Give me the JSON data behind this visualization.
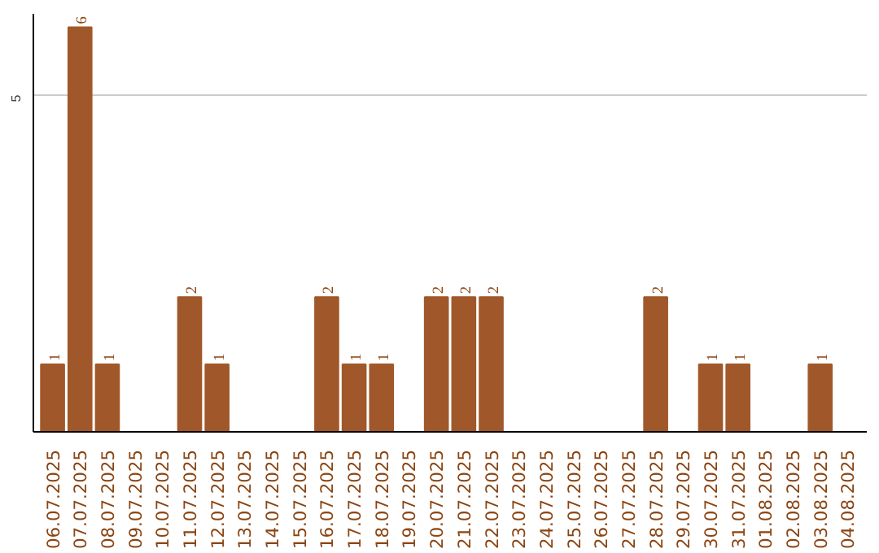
{
  "chart_data": {
    "type": "bar",
    "categories": [
      "06.07.2025",
      "07.07.2025",
      "08.07.2025",
      "09.07.2025",
      "10.07.2025",
      "11.07.2025",
      "12.07.2025",
      "13.07.2025",
      "14.07.2025",
      "15.07.2025",
      "16.07.2025",
      "17.07.2025",
      "18.07.2025",
      "19.07.2025",
      "20.07.2025",
      "21.07.2025",
      "22.07.2025",
      "23.07.2025",
      "24.07.2025",
      "25.07.2025",
      "26.07.2025",
      "27.07.2025",
      "28.07.2025",
      "29.07.2025",
      "30.07.2025",
      "31.07.2025",
      "01.08.2025",
      "02.08.2025",
      "03.08.2025",
      "04.08.2025"
    ],
    "values": [
      1,
      6,
      1,
      0,
      0,
      2,
      1,
      0,
      0,
      0,
      2,
      1,
      1,
      0,
      2,
      2,
      2,
      0,
      0,
      0,
      0,
      0,
      2,
      0,
      1,
      1,
      0,
      0,
      1,
      0
    ],
    "value_labels": [
      "1",
      "6",
      "1",
      null,
      null,
      "2",
      "1",
      null,
      null,
      null,
      "2",
      "1",
      "1",
      null,
      "2",
      "2",
      "2",
      null,
      null,
      null,
      null,
      null,
      "2",
      null,
      "1",
      "1",
      null,
      null,
      "1",
      null
    ],
    "color": "#a0582a",
    "ylim": [
      0,
      6.2
    ],
    "yticks": [
      5
    ],
    "grid": "y"
  }
}
